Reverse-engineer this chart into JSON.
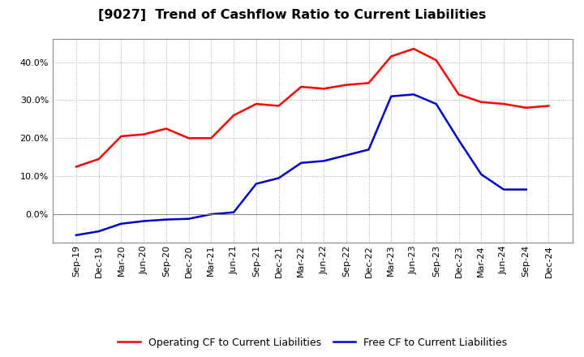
{
  "title": "[9027]  Trend of Cashflow Ratio to Current Liabilities",
  "x_labels": [
    "Sep-19",
    "Dec-19",
    "Mar-20",
    "Jun-20",
    "Sep-20",
    "Dec-20",
    "Mar-21",
    "Jun-21",
    "Sep-21",
    "Dec-21",
    "Mar-22",
    "Jun-22",
    "Sep-22",
    "Dec-22",
    "Mar-23",
    "Jun-23",
    "Sep-23",
    "Dec-23",
    "Mar-24",
    "Jun-24",
    "Sep-24",
    "Dec-24"
  ],
  "operating_cf": [
    0.125,
    0.145,
    0.205,
    0.21,
    0.225,
    0.2,
    0.2,
    0.26,
    0.29,
    0.285,
    0.335,
    0.33,
    0.34,
    0.345,
    0.415,
    0.435,
    0.405,
    0.315,
    0.295,
    0.29,
    0.28,
    0.285
  ],
  "free_cf": [
    -0.055,
    -0.045,
    -0.025,
    -0.018,
    -0.014,
    -0.012,
    0.0,
    0.005,
    0.08,
    0.095,
    0.135,
    0.14,
    0.155,
    0.17,
    0.31,
    0.315,
    0.29,
    0.195,
    0.105,
    0.065,
    0.065,
    null
  ],
  "operating_cf_color": "#FF0000",
  "free_cf_color": "#0000CC",
  "background_color": "#FFFFFF",
  "plot_bg_color": "#FFFFFF",
  "grid_color": "#AAAAAA",
  "ylim": [
    -0.075,
    0.46
  ],
  "yticks": [
    0.0,
    0.1,
    0.2,
    0.3,
    0.4
  ],
  "legend_labels": [
    "Operating CF to Current Liabilities",
    "Free CF to Current Liabilities"
  ],
  "title_fontsize": 11.5,
  "tick_fontsize": 8,
  "legend_fontsize": 9
}
